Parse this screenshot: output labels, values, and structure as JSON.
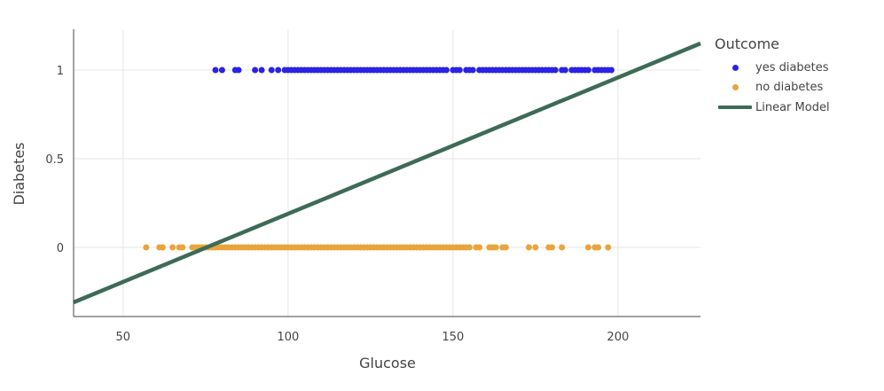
{
  "chart_data": {
    "type": "scatter",
    "title": "",
    "xlabel": "Glucose",
    "ylabel": "Diabetes",
    "xlim": [
      35,
      225
    ],
    "ylim": [
      -0.39,
      1.23
    ],
    "x_ticks": [
      50,
      100,
      150,
      200
    ],
    "x_tick_labels": [
      "50",
      "100",
      "150",
      "200"
    ],
    "y_ticks": [
      0,
      0.5,
      1
    ],
    "y_tick_labels": [
      "0",
      "0.5",
      "1"
    ],
    "grid": true,
    "legend": {
      "title": "Outcome",
      "placement": "right"
    },
    "series": [
      {
        "name": "yes diabetes",
        "type": "scatter",
        "color": "#2b22e6",
        "y": 1,
        "x": [
          78,
          80,
          84,
          85,
          90,
          92,
          95,
          97,
          99,
          100,
          101,
          102,
          103,
          104,
          105,
          106,
          107,
          108,
          109,
          110,
          111,
          112,
          113,
          114,
          115,
          116,
          117,
          118,
          119,
          120,
          121,
          122,
          123,
          124,
          125,
          126,
          127,
          128,
          129,
          130,
          131,
          132,
          133,
          134,
          135,
          136,
          137,
          138,
          139,
          140,
          141,
          142,
          143,
          144,
          145,
          146,
          147,
          148,
          150,
          151,
          152,
          154,
          155,
          156,
          158,
          159,
          160,
          161,
          162,
          163,
          164,
          165,
          166,
          167,
          168,
          169,
          170,
          171,
          172,
          173,
          174,
          175,
          176,
          177,
          178,
          179,
          180,
          181,
          183,
          184,
          186,
          187,
          188,
          189,
          190,
          191,
          193,
          194,
          195,
          196,
          197,
          198
        ]
      },
      {
        "name": "no diabetes",
        "type": "scatter",
        "color": "#eaa43c",
        "y": 0,
        "x": [
          57,
          61,
          62,
          65,
          67,
          68,
          71,
          72,
          73,
          74,
          75,
          76,
          77,
          78,
          79,
          80,
          81,
          82,
          83,
          84,
          85,
          86,
          87,
          88,
          89,
          90,
          91,
          92,
          93,
          94,
          95,
          96,
          97,
          98,
          99,
          100,
          101,
          102,
          103,
          104,
          105,
          106,
          107,
          108,
          109,
          110,
          111,
          112,
          113,
          114,
          115,
          116,
          117,
          118,
          119,
          120,
          121,
          122,
          123,
          124,
          125,
          126,
          127,
          128,
          129,
          130,
          131,
          132,
          133,
          134,
          135,
          136,
          137,
          138,
          139,
          140,
          141,
          142,
          143,
          144,
          145,
          146,
          147,
          148,
          149,
          150,
          151,
          152,
          153,
          154,
          155,
          157,
          158,
          161,
          162,
          163,
          165,
          166,
          173,
          175,
          179,
          180,
          183,
          191,
          193,
          194,
          197
        ]
      },
      {
        "name": "Linear Model",
        "type": "line",
        "color": "#3d6b56",
        "x": [
          35,
          225
        ],
        "y": [
          -0.31,
          1.15
        ]
      }
    ]
  }
}
